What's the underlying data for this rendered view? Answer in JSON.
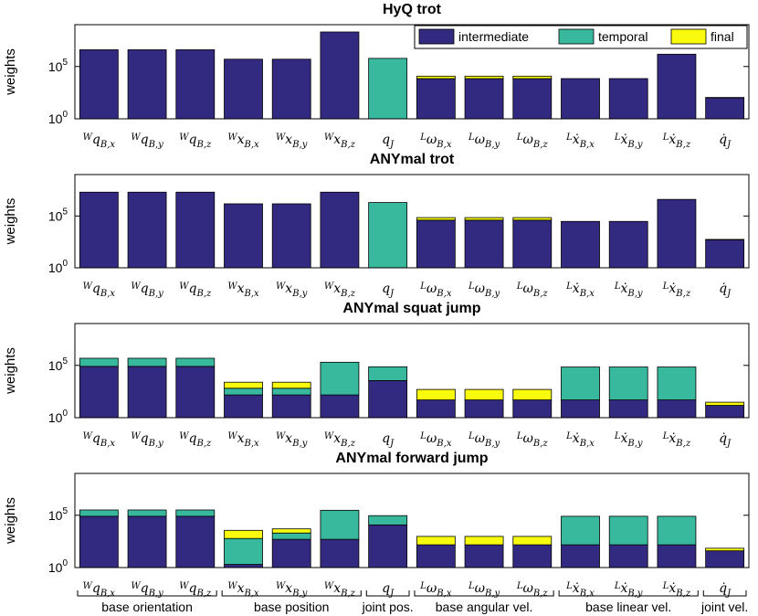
{
  "colors": {
    "intermediate": "#322A80",
    "temporal": "#38B99E",
    "final": "#F9FB0E"
  },
  "chart_data": [
    {
      "type": "bar",
      "stacked": true,
      "yscale": "log",
      "title": "HyQ trot",
      "ylabel": "weights",
      "ylim": [
        1,
        1000000000.0
      ],
      "yticks": [
        {
          "value": 1,
          "label": "10",
          "exp": "0"
        },
        {
          "value": 100000,
          "label": "10",
          "exp": "5"
        }
      ],
      "legend": "top-right",
      "categories": [
        "Wq_B,x",
        "Wq_B,y",
        "Wq_B,z",
        "Wx_B,x",
        "Wx_B,y",
        "Wx_B,z",
        "q_J",
        "Lω_B,x",
        "Lω_B,y",
        "Lω_B,z",
        "Lẋ_B,x",
        "Lẋ_B,y",
        "Lẋ_B,z",
        "q̇_J"
      ],
      "series": [
        {
          "name": "intermediate",
          "values": [
            4000000.0,
            4000000.0,
            4000000.0,
            500000.0,
            500000.0,
            200000000.0,
            0,
            7000.0,
            7000.0,
            7000.0,
            7000.0,
            7000.0,
            1500000.0,
            100
          ]
        },
        {
          "name": "temporal",
          "values": [
            0,
            0,
            0,
            0,
            0,
            0,
            600000.0,
            0,
            0,
            0,
            0,
            0,
            0,
            0
          ]
        },
        {
          "name": "final",
          "values": [
            0,
            0,
            0,
            0,
            0,
            0,
            0,
            5000.0,
            5000.0,
            5000.0,
            0,
            0,
            0,
            10
          ]
        }
      ]
    },
    {
      "type": "bar",
      "stacked": true,
      "yscale": "log",
      "title": "ANYmal trot",
      "ylabel": "weights",
      "ylim": [
        1,
        1000000000.0
      ],
      "yticks": [
        {
          "value": 1,
          "label": "10",
          "exp": "0"
        },
        {
          "value": 100000,
          "label": "10",
          "exp": "5"
        }
      ],
      "categories": [
        "Wq_B,x",
        "Wq_B,y",
        "Wq_B,z",
        "Wx_B,x",
        "Wx_B,y",
        "Wx_B,z",
        "q_J",
        "Lω_B,x",
        "Lω_B,y",
        "Lω_B,z",
        "Lẋ_B,x",
        "Lẋ_B,y",
        "Lẋ_B,z",
        "q̇_J"
      ],
      "series": [
        {
          "name": "intermediate",
          "values": [
            20000000.0,
            20000000.0,
            20000000.0,
            1500000.0,
            1500000.0,
            20000000.0,
            0,
            40000.0,
            40000.0,
            40000.0,
            30000.0,
            30000.0,
            4000000.0,
            500
          ]
        },
        {
          "name": "temporal",
          "values": [
            0,
            0,
            0,
            0,
            0,
            0,
            2000000.0,
            0,
            0,
            0,
            0,
            0,
            0,
            0
          ]
        },
        {
          "name": "final",
          "values": [
            0,
            0,
            0,
            0,
            0,
            0,
            0,
            30000.0,
            30000.0,
            30000.0,
            0,
            0,
            0,
            50
          ]
        }
      ]
    },
    {
      "type": "bar",
      "stacked": true,
      "yscale": "log",
      "title": "ANYmal squat jump",
      "ylabel": "weights",
      "ylim": [
        1,
        1000000000.0
      ],
      "yticks": [
        {
          "value": 1,
          "label": "10",
          "exp": "0"
        },
        {
          "value": 100000,
          "label": "10",
          "exp": "5"
        }
      ],
      "categories": [
        "Wq_B,x",
        "Wq_B,y",
        "Wq_B,z",
        "Wx_B,x",
        "Wx_B,y",
        "Wx_B,z",
        "q_J",
        "Lω_B,x",
        "Lω_B,y",
        "Lω_B,z",
        "Lẋ_B,x",
        "Lẋ_B,y",
        "Lẋ_B,z",
        "q̇_J"
      ],
      "series": [
        {
          "name": "intermediate",
          "values": [
            80000.0,
            80000.0,
            80000.0,
            150,
            150,
            150,
            3500,
            50,
            50,
            50,
            50,
            50,
            50,
            15
          ]
        },
        {
          "name": "temporal",
          "values": [
            400000.0,
            400000.0,
            400000.0,
            500,
            500,
            200000.0,
            70000.0,
            0,
            0,
            0,
            70000.0,
            70000.0,
            70000.0,
            0
          ]
        },
        {
          "name": "final",
          "values": [
            0,
            0,
            0,
            1800,
            1800,
            0,
            0,
            450,
            450,
            450,
            0,
            0,
            0,
            15
          ]
        }
      ]
    },
    {
      "type": "bar",
      "stacked": true,
      "yscale": "log",
      "title": "ANYmal forward jump",
      "ylabel": "weights",
      "ylim": [
        1,
        1000000000.0
      ],
      "yticks": [
        {
          "value": 1,
          "label": "10",
          "exp": "0"
        },
        {
          "value": 100000,
          "label": "10",
          "exp": "5"
        }
      ],
      "categories": [
        "Wq_B,x",
        "Wq_B,y",
        "Wq_B,z",
        "Wx_B,x",
        "Wx_B,y",
        "Wx_B,z",
        "q_J",
        "Lω_B,x",
        "Lω_B,y",
        "Lω_B,z",
        "Lẋ_B,x",
        "Lẋ_B,y",
        "Lẋ_B,z",
        "q̇_J"
      ],
      "series": [
        {
          "name": "intermediate",
          "values": [
            80000.0,
            80000.0,
            80000.0,
            2,
            500,
            500,
            12000.0,
            150,
            150,
            150,
            150,
            150,
            150,
            40
          ]
        },
        {
          "name": "temporal",
          "values": [
            240000.0,
            240000.0,
            240000.0,
            600,
            1500,
            300000.0,
            80000.0,
            0,
            0,
            0,
            80000.0,
            80000.0,
            80000.0,
            0
          ]
        },
        {
          "name": "final",
          "values": [
            0,
            0,
            0,
            3000,
            3000,
            0,
            0,
            800,
            800,
            800,
            0,
            0,
            0,
            30
          ]
        }
      ]
    }
  ],
  "group_labels": [
    {
      "label": "base orientation",
      "from": 0,
      "to": 2
    },
    {
      "label": "base position",
      "from": 3,
      "to": 5
    },
    {
      "label": "joint pos.",
      "from": 6,
      "to": 6
    },
    {
      "label": "base angular vel.",
      "from": 7,
      "to": 9
    },
    {
      "label": "base linear vel.",
      "from": 10,
      "to": 12
    },
    {
      "label": "joint vel.",
      "from": 13,
      "to": 13
    }
  ]
}
